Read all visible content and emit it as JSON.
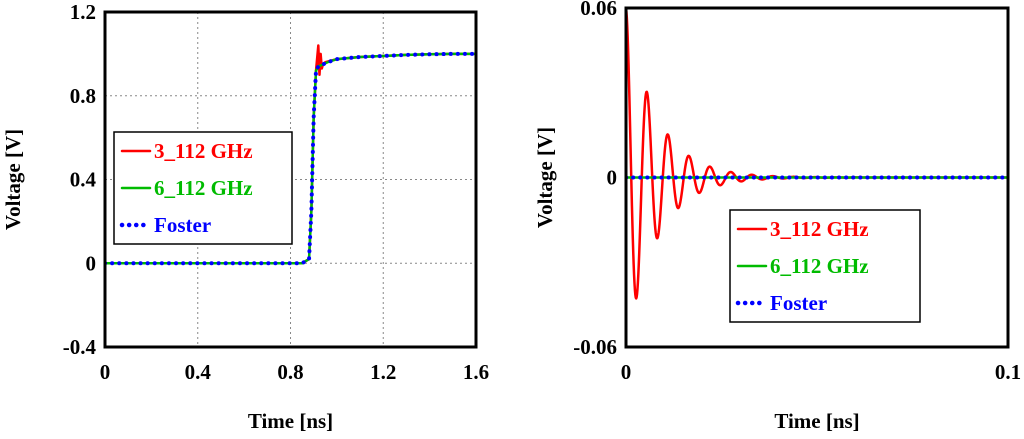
{
  "chart_data": [
    {
      "type": "line",
      "xlabel": "Time [ns]",
      "ylabel": "Voltage [V]",
      "xlim": [
        0,
        1.6
      ],
      "ylim": [
        -0.4,
        1.2
      ],
      "xticks": [
        "0",
        "0.4",
        "0.8",
        "1.2",
        "1.6"
      ],
      "yticks": [
        "-0.4",
        "0",
        "0.4",
        "0.8",
        "1.2"
      ],
      "grid": true,
      "legend_position": "middle-left",
      "series": [
        {
          "name": "3_112 GHz",
          "color": "#ff0000",
          "style": "solid",
          "x": [
            0,
            0.85,
            0.88,
            0.89,
            0.9,
            0.91,
            0.92,
            0.925,
            0.93,
            0.935,
            0.94,
            0.95,
            1.0,
            1.1,
            1.2,
            1.3,
            1.4,
            1.5,
            1.6
          ],
          "y": [
            0,
            0,
            0.02,
            0.25,
            0.7,
            0.92,
            1.04,
            0.9,
            1.0,
            0.93,
            0.95,
            0.96,
            0.975,
            0.985,
            0.99,
            0.995,
            0.998,
            1.0,
            1.0
          ]
        },
        {
          "name": "6_112 GHz",
          "color": "#00bb00",
          "style": "solid",
          "x": [
            0,
            0.85,
            0.88,
            0.89,
            0.9,
            0.91,
            0.92,
            0.94,
            0.96,
            1.0,
            1.1,
            1.2,
            1.3,
            1.4,
            1.5,
            1.6
          ],
          "y": [
            0,
            0,
            0.02,
            0.25,
            0.7,
            0.92,
            0.94,
            0.95,
            0.96,
            0.975,
            0.985,
            0.99,
            0.995,
            0.998,
            1.0,
            1.0
          ]
        },
        {
          "name": "Foster",
          "color": "#0000ff",
          "style": "dotted",
          "x": [
            0,
            0.85,
            0.88,
            0.89,
            0.9,
            0.91,
            0.92,
            0.94,
            0.96,
            1.0,
            1.1,
            1.2,
            1.3,
            1.4,
            1.5,
            1.6
          ],
          "y": [
            0,
            0,
            0.02,
            0.25,
            0.7,
            0.92,
            0.94,
            0.95,
            0.96,
            0.975,
            0.985,
            0.99,
            0.995,
            0.998,
            1.0,
            1.0
          ]
        }
      ]
    },
    {
      "type": "line",
      "xlabel": "Time [ns]",
      "ylabel": "Voltage [V]",
      "xlim": [
        0,
        0.1
      ],
      "ylim": [
        -0.06,
        0.06
      ],
      "xticks": [
        "0",
        "0.1"
      ],
      "yticks": [
        "-0.06",
        "0",
        "0.06"
      ],
      "grid": false,
      "legend_position": "bottom-center",
      "series": [
        {
          "name": "3_112 GHz",
          "color": "#ff0000",
          "style": "solid",
          "damped_oscillation": {
            "amplitude": 0.06,
            "period": 0.0055,
            "decay": 0.008,
            "duration": 0.1
          }
        },
        {
          "name": "6_112 GHz",
          "color": "#00bb00",
          "style": "solid",
          "x": [
            0,
            0.1
          ],
          "y": [
            0,
            0
          ]
        },
        {
          "name": "Foster",
          "color": "#0000ff",
          "style": "dotted",
          "x": [
            0,
            0.1
          ],
          "y": [
            0,
            0
          ]
        }
      ]
    }
  ]
}
